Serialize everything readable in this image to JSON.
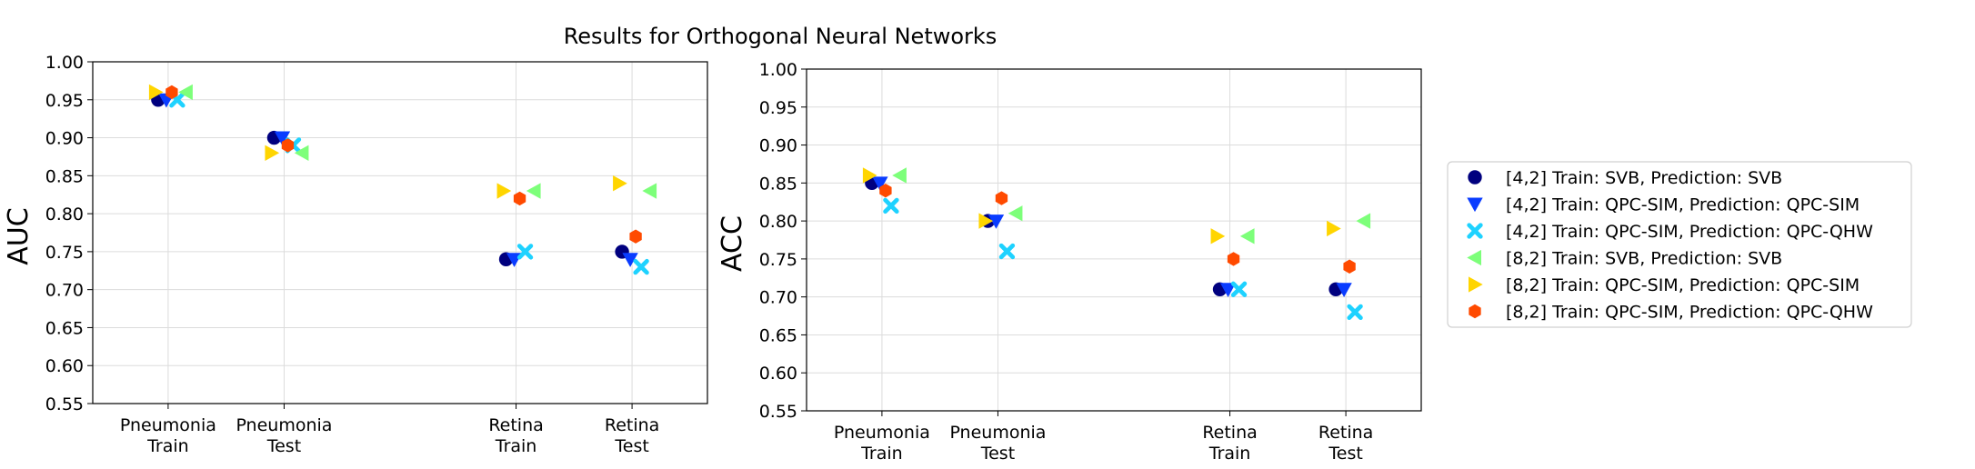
{
  "figure_title": "Results for Orthogonal Neural Networks",
  "chart_data": [
    {
      "type": "scatter",
      "ylabel": "AUC",
      "ylim": [
        0.55,
        1.0
      ],
      "yticks": [
        "0.55",
        "0.60",
        "0.65",
        "0.70",
        "0.75",
        "0.80",
        "0.85",
        "0.90",
        "0.95",
        "1.00"
      ],
      "categories": [
        [
          "Pneumonia",
          "Train"
        ],
        [
          "Pneumonia",
          "Test"
        ],
        [
          "Retina",
          "Train"
        ],
        [
          "Retina",
          "Test"
        ]
      ],
      "category_positions": [
        0,
        1,
        3,
        4
      ],
      "grid": true,
      "series": [
        {
          "name": "[4,2] Train: SVB, Prediction: SVB",
          "values": [
            0.95,
            0.9,
            0.74,
            0.75
          ]
        },
        {
          "name": "[4,2] Train: QPC-SIM, Prediction: QPC-SIM",
          "values": [
            0.95,
            0.9,
            0.74,
            0.74
          ]
        },
        {
          "name": "[4,2] Train: QPC-SIM, Prediction: QPC-QHW",
          "values": [
            0.95,
            0.89,
            0.75,
            0.73
          ]
        },
        {
          "name": "[8,2] Train: SVB, Prediction: SVB",
          "values": [
            0.96,
            0.88,
            0.83,
            0.83
          ]
        },
        {
          "name": "[8,2] Train: QPC-SIM, Prediction: QPC-SIM",
          "values": [
            0.96,
            0.88,
            0.83,
            0.84
          ]
        },
        {
          "name": "[8,2] Train: QPC-SIM, Prediction: QPC-QHW",
          "values": [
            0.96,
            0.89,
            0.82,
            0.77
          ]
        }
      ]
    },
    {
      "type": "scatter",
      "ylabel": "ACC",
      "ylim": [
        0.55,
        1.0
      ],
      "yticks": [
        "0.55",
        "0.60",
        "0.65",
        "0.70",
        "0.75",
        "0.80",
        "0.85",
        "0.90",
        "0.95",
        "1.00"
      ],
      "categories": [
        [
          "Pneumonia",
          "Train"
        ],
        [
          "Pneumonia",
          "Test"
        ],
        [
          "Retina",
          "Train"
        ],
        [
          "Retina",
          "Test"
        ]
      ],
      "category_positions": [
        0,
        1,
        3,
        4
      ],
      "grid": true,
      "series": [
        {
          "name": "[4,2] Train: SVB, Prediction: SVB",
          "values": [
            0.85,
            0.8,
            0.71,
            0.71
          ]
        },
        {
          "name": "[4,2] Train: QPC-SIM, Prediction: QPC-SIM",
          "values": [
            0.85,
            0.8,
            0.71,
            0.71
          ]
        },
        {
          "name": "[4,2] Train: QPC-SIM, Prediction: QPC-QHW",
          "values": [
            0.82,
            0.76,
            0.71,
            0.68
          ]
        },
        {
          "name": "[8,2] Train: SVB, Prediction: SVB",
          "values": [
            0.86,
            0.81,
            0.78,
            0.8
          ]
        },
        {
          "name": "[8,2] Train: QPC-SIM, Prediction: QPC-SIM",
          "values": [
            0.86,
            0.8,
            0.78,
            0.79
          ]
        },
        {
          "name": "[8,2] Train: QPC-SIM, Prediction: QPC-QHW",
          "values": [
            0.84,
            0.83,
            0.75,
            0.74
          ]
        }
      ]
    }
  ],
  "legend": {
    "placement": "right",
    "entries": [
      {
        "label": "[4,2] Train: SVB, Prediction: SVB",
        "marker": "circle",
        "color": "#00007f"
      },
      {
        "label": "[4,2] Train: QPC-SIM, Prediction: QPC-SIM",
        "marker": "triangle-down",
        "color": "#0a3cff"
      },
      {
        "label": "[4,2] Train: QPC-SIM, Prediction: QPC-QHW",
        "marker": "x-filled",
        "color": "#1ed2ff"
      },
      {
        "label": "[8,2] Train: SVB, Prediction: SVB",
        "marker": "triangle-left",
        "color": "#7dff7a"
      },
      {
        "label": "[8,2] Train: QPC-SIM, Prediction: QPC-SIM",
        "marker": "triangle-right",
        "color": "#ffd500"
      },
      {
        "label": "[8,2] Train: QPC-SIM, Prediction: QPC-QHW",
        "marker": "hexagon",
        "color": "#ff4a00"
      }
    ]
  }
}
